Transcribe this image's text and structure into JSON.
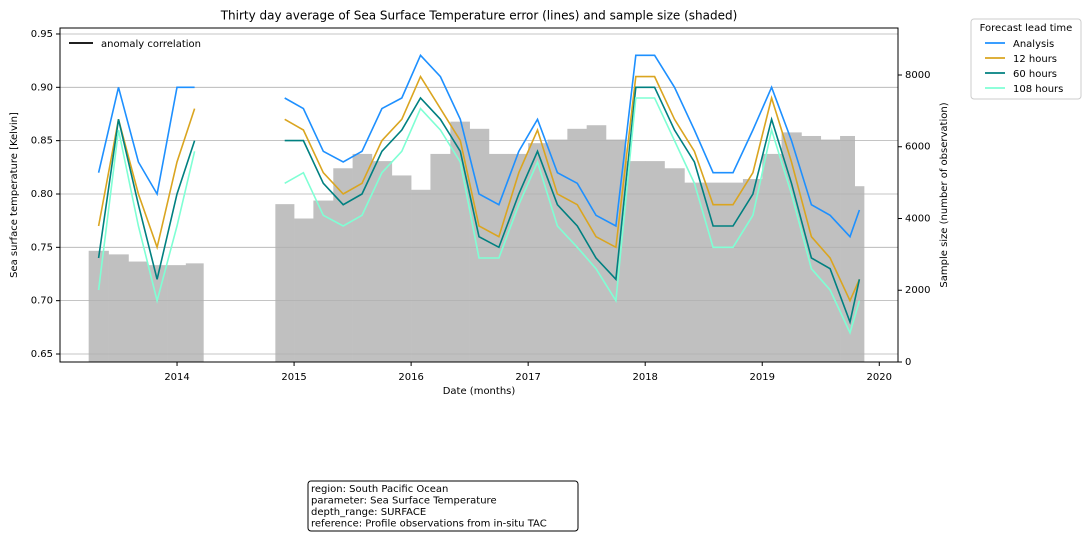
{
  "chart_data": {
    "type": "line",
    "title": "Thirty day average of Sea Surface Temperature error (lines) and sample size (shaded)",
    "xlabel": "Date (months)",
    "ylabel": "Sea surface temperature [Kelvin]",
    "y2label": "Sample size (number of observation)",
    "x": [
      2013.33,
      2013.5,
      2013.67,
      2013.83,
      2014.0,
      2014.15,
      2014.5,
      2014.92,
      2015.08,
      2015.25,
      2015.42,
      2015.58,
      2015.75,
      2015.92,
      2016.08,
      2016.25,
      2016.42,
      2016.58,
      2016.75,
      2016.92,
      2017.08,
      2017.25,
      2017.42,
      2017.58,
      2017.75,
      2017.92,
      2018.08,
      2018.25,
      2018.42,
      2018.58,
      2018.75,
      2018.92,
      2019.08,
      2019.25,
      2019.42,
      2019.58,
      2019.75,
      2019.83
    ],
    "series": [
      {
        "name": "Sample size",
        "type": "area",
        "axis": "y2",
        "color": "#c0c0c0",
        "values": [
          3100,
          3000,
          2800,
          2700,
          2700,
          2750,
          null,
          4400,
          4000,
          4500,
          5400,
          5800,
          5600,
          5200,
          4800,
          5800,
          6700,
          6500,
          5800,
          5800,
          6100,
          6200,
          6500,
          6600,
          6200,
          5600,
          5600,
          5400,
          5000,
          5000,
          5000,
          5100,
          5800,
          6400,
          6300,
          6200,
          6300,
          4900
        ]
      },
      {
        "name": "Analysis",
        "color": "#1e90ff",
        "values": [
          0.82,
          0.9,
          0.83,
          0.8,
          0.9,
          0.9,
          null,
          0.89,
          0.88,
          0.84,
          0.83,
          0.84,
          0.88,
          0.89,
          0.93,
          0.91,
          0.87,
          0.8,
          0.79,
          0.84,
          0.87,
          0.82,
          0.81,
          0.78,
          0.77,
          0.93,
          0.93,
          0.9,
          0.86,
          0.82,
          0.82,
          0.86,
          0.9,
          0.85,
          0.79,
          0.78,
          0.76,
          0.785
        ]
      },
      {
        "name": "12 hours",
        "color": "#daa520",
        "values": [
          0.77,
          0.87,
          0.8,
          0.75,
          0.83,
          0.88,
          null,
          0.87,
          0.86,
          0.82,
          0.8,
          0.81,
          0.85,
          0.87,
          0.91,
          0.88,
          0.85,
          0.77,
          0.76,
          0.82,
          0.86,
          0.8,
          0.79,
          0.76,
          0.75,
          0.91,
          0.91,
          0.87,
          0.84,
          0.79,
          0.79,
          0.82,
          0.89,
          0.83,
          0.76,
          0.74,
          0.7,
          0.72
        ]
      },
      {
        "name": "60 hours",
        "color": "#008080",
        "values": [
          0.74,
          0.87,
          0.79,
          0.72,
          0.8,
          0.85,
          null,
          0.85,
          0.85,
          0.81,
          0.79,
          0.8,
          0.84,
          0.86,
          0.89,
          0.87,
          0.84,
          0.76,
          0.75,
          0.8,
          0.84,
          0.79,
          0.77,
          0.74,
          0.72,
          0.9,
          0.9,
          0.86,
          0.83,
          0.77,
          0.77,
          0.8,
          0.87,
          0.81,
          0.74,
          0.73,
          0.68,
          0.72
        ]
      },
      {
        "name": "108 hours",
        "color": "#7fffd4",
        "values": [
          0.71,
          0.86,
          0.77,
          0.7,
          0.77,
          0.84,
          null,
          0.81,
          0.82,
          0.78,
          0.77,
          0.78,
          0.82,
          0.84,
          0.88,
          0.86,
          0.83,
          0.74,
          0.74,
          0.79,
          0.83,
          0.77,
          0.75,
          0.73,
          0.7,
          0.89,
          0.89,
          0.85,
          0.81,
          0.75,
          0.75,
          0.78,
          0.86,
          0.8,
          0.73,
          0.71,
          0.67,
          0.7
        ]
      }
    ],
    "legend_title": "Forecast lead time",
    "legend": "outside upper right",
    "inner_legend": {
      "label": "anomaly correlation",
      "color": "#000000"
    },
    "xlim": [
      2013.0,
      2020.16
    ],
    "xticks": [
      2014,
      2015,
      2016,
      2017,
      2018,
      2019,
      2020
    ],
    "ylim": [
      0.6425,
      0.9556
    ],
    "yticks": [
      0.65,
      {
        "value": 0.7,
        "label": "0.70"
      },
      0.75,
      {
        "value": 0.8,
        "label": "0.80"
      },
      0.85,
      {
        "value": 0.9,
        "label": "0.90"
      },
      0.95
    ],
    "y2lim": [
      0,
      9310
    ],
    "y2ticks": [
      0,
      2000,
      4000,
      6000,
      8000
    ],
    "grid": true,
    "info_box": [
      "region: South Pacific Ocean",
      "parameter: Sea Surface Temperature",
      "depth_range: SURFACE",
      "reference: Profile observations from in-situ TAC"
    ]
  }
}
